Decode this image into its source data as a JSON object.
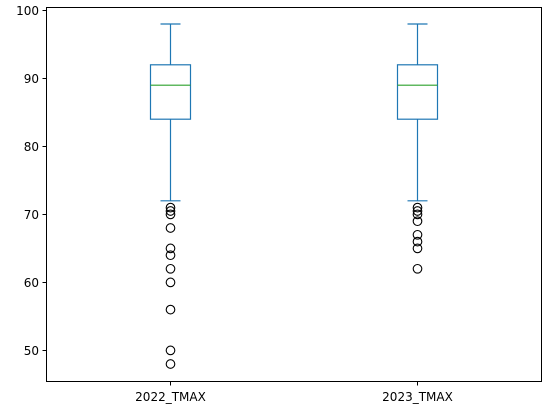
{
  "chart_data": {
    "type": "box",
    "title": "",
    "xlabel": "",
    "ylabel": "",
    "ylim": [
      45.5,
      100.5
    ],
    "yticks": [
      50,
      60,
      70,
      80,
      90,
      100
    ],
    "grid": false,
    "categories": [
      "2022_TMAX",
      "2023_TMAX"
    ],
    "boxes": [
      {
        "label": "2022_TMAX",
        "whisker_low": 72,
        "q1": 84,
        "median": 89,
        "q3": 92,
        "whisker_high": 98,
        "outliers": [
          71,
          70.5,
          70,
          68,
          65,
          64,
          62,
          60,
          56,
          50,
          48
        ]
      },
      {
        "label": "2023_TMAX",
        "whisker_low": 72,
        "q1": 84,
        "median": 89,
        "q3": 92,
        "whisker_high": 98,
        "outliers": [
          71,
          70.5,
          70,
          69,
          67,
          66,
          65,
          62
        ]
      }
    ],
    "colors": {
      "box": "#1f77b4",
      "median": "#2ca02c",
      "outlier": "#000000",
      "axis": "#000000"
    }
  }
}
